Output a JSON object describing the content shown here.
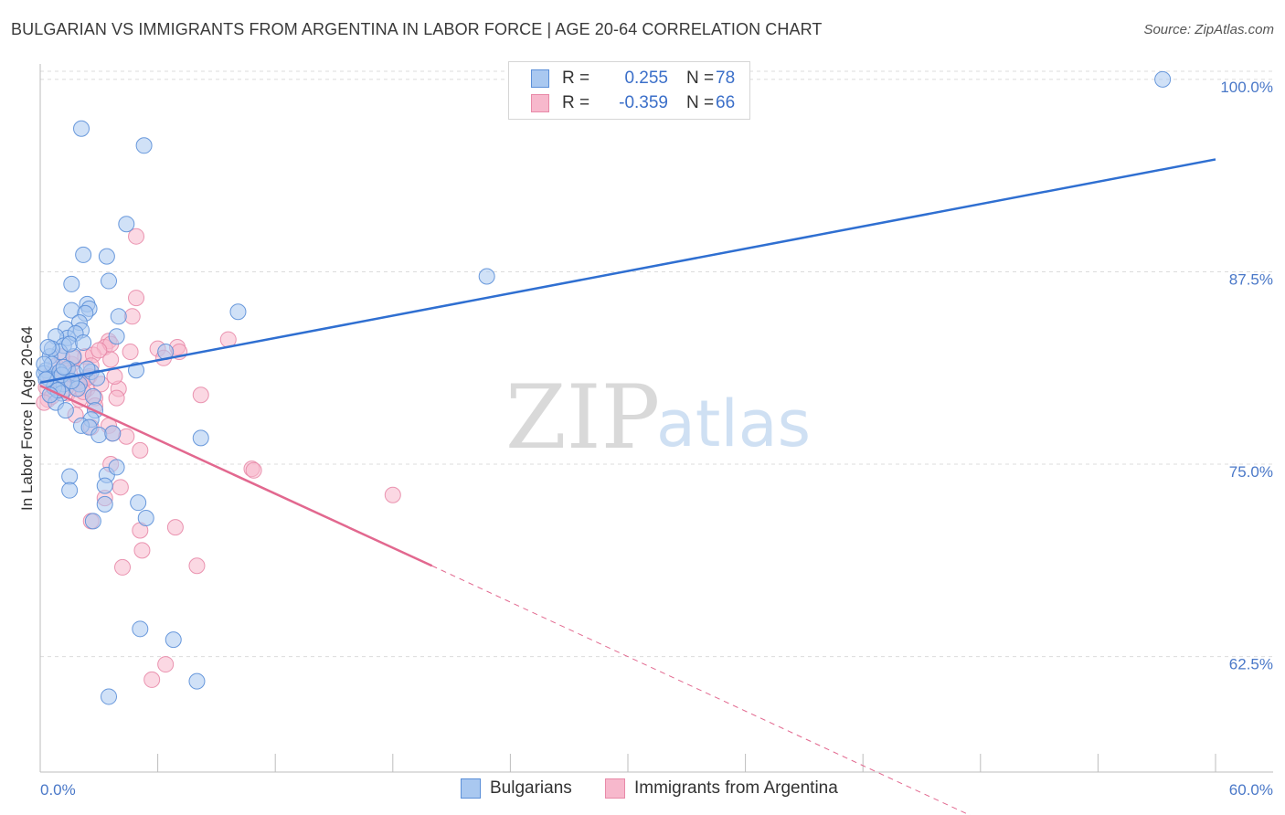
{
  "header": {
    "title": "BULGARIAN VS IMMIGRANTS FROM ARGENTINA IN LABOR FORCE | AGE 20-64 CORRELATION CHART",
    "source": "Source: ZipAtlas.com"
  },
  "watermark": {
    "part1": "ZIP",
    "part2": "atlas"
  },
  "legend": {
    "rows": [
      {
        "r_label": "R =",
        "r_value": "0.255",
        "n_label": "N =",
        "n_value": "78"
      },
      {
        "r_label": "R =",
        "r_value": "-0.359",
        "n_label": "N =",
        "n_value": "66"
      }
    ]
  },
  "bottom_legend": {
    "series1": "Bulgarians",
    "series2": "Immigrants from Argentina"
  },
  "chart_data": {
    "type": "scatter",
    "title": "BULGARIAN VS IMMIGRANTS FROM ARGENTINA IN LABOR FORCE | AGE 20-64 CORRELATION CHART",
    "xlabel": "",
    "ylabel": "In Labor Force | Age 20-64",
    "xlim": [
      0,
      60
    ],
    "ylim": [
      55,
      101
    ],
    "x_tick_labels": [
      "0.0%",
      "60.0%"
    ],
    "y_ticks": [
      62.5,
      75.0,
      87.5,
      100.0
    ],
    "y_tick_labels": [
      "62.5%",
      "75.0%",
      "87.5%",
      "100.0%"
    ],
    "grid": "horizontal dashed",
    "colors": {
      "series1_fill": "#a9c8f0",
      "series1_stroke": "#5b8fd8",
      "series1_line": "#2f6fd1",
      "series2_fill": "#f7b8cc",
      "series2_stroke": "#e88aa8",
      "series2_line": "#e2688f"
    },
    "series": [
      {
        "name": "Bulgarians",
        "r": 0.255,
        "n": 78,
        "trend": {
          "x": [
            0,
            60
          ],
          "y": [
            80.3,
            94.8
          ]
        },
        "points": [
          [
            2.1,
            96.8
          ],
          [
            5.3,
            95.7
          ],
          [
            4.4,
            90.6
          ],
          [
            2.2,
            88.6
          ],
          [
            3.4,
            88.5
          ],
          [
            3.5,
            86.9
          ],
          [
            1.6,
            86.7
          ],
          [
            2.4,
            85.4
          ],
          [
            2.5,
            85.1
          ],
          [
            1.6,
            85.0
          ],
          [
            2.3,
            84.8
          ],
          [
            4.0,
            84.6
          ],
          [
            2.0,
            84.2
          ],
          [
            2.1,
            83.7
          ],
          [
            1.3,
            83.8
          ],
          [
            1.4,
            83.2
          ],
          [
            0.8,
            83.3
          ],
          [
            1.8,
            83.5
          ],
          [
            3.9,
            83.3
          ],
          [
            1.2,
            82.7
          ],
          [
            1.0,
            82.3
          ],
          [
            0.5,
            82.0
          ],
          [
            0.6,
            82.5
          ],
          [
            1.7,
            82.0
          ],
          [
            1.4,
            81.2
          ],
          [
            2.6,
            81.0
          ],
          [
            0.3,
            81.1
          ],
          [
            0.4,
            80.6
          ],
          [
            0.9,
            80.5
          ],
          [
            1.2,
            80.2
          ],
          [
            2.0,
            80.2
          ],
          [
            0.7,
            80.0
          ],
          [
            1.1,
            79.6
          ],
          [
            2.7,
            79.4
          ],
          [
            0.8,
            79.0
          ],
          [
            1.3,
            78.5
          ],
          [
            2.8,
            78.5
          ],
          [
            2.6,
            77.9
          ],
          [
            2.1,
            77.5
          ],
          [
            2.5,
            77.4
          ],
          [
            3.0,
            76.9
          ],
          [
            3.7,
            77.0
          ],
          [
            4.9,
            81.1
          ],
          [
            6.4,
            82.3
          ],
          [
            10.1,
            84.9
          ],
          [
            8.2,
            76.7
          ],
          [
            22.8,
            87.2
          ],
          [
            3.4,
            74.3
          ],
          [
            1.5,
            74.2
          ],
          [
            3.9,
            74.8
          ],
          [
            1.5,
            73.3
          ],
          [
            3.3,
            73.6
          ],
          [
            5.0,
            72.5
          ],
          [
            3.3,
            72.4
          ],
          [
            5.4,
            71.5
          ],
          [
            2.7,
            71.3
          ],
          [
            5.1,
            64.3
          ],
          [
            6.8,
            63.6
          ],
          [
            3.5,
            59.9
          ],
          [
            8.0,
            60.9
          ],
          [
            57.3,
            100.0
          ],
          [
            0.2,
            80.9
          ],
          [
            0.3,
            80.5
          ],
          [
            0.6,
            81.5
          ],
          [
            1.0,
            81.0
          ],
          [
            1.5,
            82.8
          ],
          [
            0.9,
            79.8
          ],
          [
            2.2,
            82.9
          ],
          [
            1.8,
            80.9
          ],
          [
            0.4,
            82.6
          ],
          [
            1.1,
            80.8
          ],
          [
            0.5,
            79.5
          ],
          [
            1.9,
            79.9
          ],
          [
            2.9,
            80.6
          ],
          [
            1.6,
            80.4
          ],
          [
            0.2,
            81.5
          ],
          [
            2.4,
            81.2
          ],
          [
            1.2,
            81.3
          ]
        ]
      },
      {
        "name": "Immigrants from Argentina",
        "r": -0.359,
        "n": 66,
        "trend": {
          "x": [
            0,
            20
          ],
          "y": [
            80.1,
            68.4
          ]
        },
        "trend_dashed": {
          "x": [
            20,
            50
          ],
          "y": [
            68.4,
            50.7
          ]
        },
        "points": [
          [
            4.9,
            89.8
          ],
          [
            4.9,
            85.8
          ],
          [
            4.7,
            84.6
          ],
          [
            3.5,
            83.0
          ],
          [
            9.6,
            83.1
          ],
          [
            7.0,
            82.6
          ],
          [
            6.0,
            82.5
          ],
          [
            4.6,
            82.3
          ],
          [
            7.1,
            82.3
          ],
          [
            3.3,
            82.6
          ],
          [
            3.6,
            82.8
          ],
          [
            2.3,
            82.0
          ],
          [
            2.7,
            82.1
          ],
          [
            3.6,
            81.8
          ],
          [
            6.3,
            81.9
          ],
          [
            1.6,
            81.5
          ],
          [
            2.6,
            81.4
          ],
          [
            1.2,
            81.1
          ],
          [
            2.5,
            80.7
          ],
          [
            0.9,
            80.6
          ],
          [
            1.9,
            80.3
          ],
          [
            2.4,
            79.9
          ],
          [
            4.0,
            79.9
          ],
          [
            1.4,
            79.6
          ],
          [
            8.2,
            79.5
          ],
          [
            2.8,
            79.3
          ],
          [
            3.9,
            79.3
          ],
          [
            0.4,
            79.2
          ],
          [
            2.8,
            78.8
          ],
          [
            1.8,
            78.2
          ],
          [
            2.6,
            77.4
          ],
          [
            3.5,
            77.5
          ],
          [
            3.7,
            77.0
          ],
          [
            4.4,
            76.8
          ],
          [
            5.1,
            75.9
          ],
          [
            3.6,
            75.0
          ],
          [
            10.8,
            74.7
          ],
          [
            10.9,
            74.6
          ],
          [
            18.0,
            73.0
          ],
          [
            3.3,
            72.8
          ],
          [
            2.6,
            71.3
          ],
          [
            4.1,
            73.5
          ],
          [
            5.1,
            70.7
          ],
          [
            6.9,
            70.9
          ],
          [
            5.2,
            69.4
          ],
          [
            4.2,
            68.3
          ],
          [
            8.0,
            68.4
          ],
          [
            6.4,
            62.0
          ],
          [
            5.7,
            61.0
          ],
          [
            0.3,
            80.0
          ],
          [
            0.6,
            79.4
          ],
          [
            1.0,
            80.3
          ],
          [
            1.5,
            80.9
          ],
          [
            0.8,
            81.4
          ],
          [
            2.1,
            80.4
          ],
          [
            3.1,
            80.2
          ],
          [
            1.3,
            79.9
          ],
          [
            0.5,
            80.8
          ],
          [
            2.0,
            79.2
          ],
          [
            1.7,
            81.9
          ],
          [
            3.0,
            82.4
          ],
          [
            2.4,
            80.6
          ],
          [
            1.1,
            82.0
          ],
          [
            0.2,
            79.0
          ],
          [
            3.8,
            80.7
          ],
          [
            2.2,
            79.7
          ]
        ]
      }
    ]
  }
}
